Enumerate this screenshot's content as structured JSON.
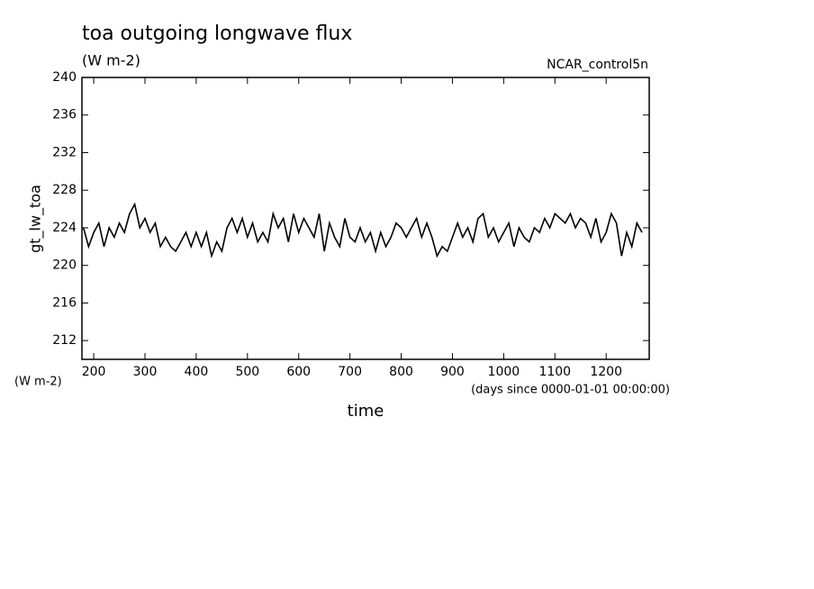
{
  "chart_data": {
    "type": "line",
    "title": "toa outgoing longwave flux",
    "subtitle": "(W m-2)",
    "annotation": "NCAR_control5n",
    "y_label": "gt_lw_toa",
    "y_units": "(W m-2)",
    "x_units": "(days since 0000-01-01 00:00:00)",
    "x_label": "time",
    "x": [
      180,
      190,
      200,
      210,
      220,
      230,
      240,
      250,
      260,
      270,
      280,
      290,
      300,
      310,
      320,
      330,
      340,
      350,
      360,
      370,
      380,
      390,
      400,
      410,
      420,
      430,
      440,
      450,
      460,
      470,
      480,
      490,
      500,
      510,
      520,
      530,
      540,
      550,
      560,
      570,
      580,
      590,
      600,
      610,
      620,
      630,
      640,
      650,
      660,
      670,
      680,
      690,
      700,
      710,
      720,
      730,
      740,
      750,
      760,
      770,
      780,
      790,
      800,
      810,
      820,
      830,
      840,
      850,
      860,
      870,
      880,
      890,
      900,
      910,
      920,
      930,
      940,
      950,
      960,
      970,
      980,
      990,
      1000,
      1010,
      1020,
      1030,
      1040,
      1050,
      1060,
      1070,
      1080,
      1090,
      1100,
      1110,
      1120,
      1130,
      1140,
      1150,
      1160,
      1170,
      1180,
      1190,
      1200,
      1210,
      1220,
      1230,
      1240,
      1250,
      1260,
      1270
    ],
    "series": [
      {
        "name": "gt_lw_toa",
        "color": "#000000",
        "values": [
          224,
          222,
          223.5,
          224.5,
          222,
          224,
          223,
          224.5,
          223.5,
          225.5,
          226.5,
          224,
          225,
          223.5,
          224.5,
          222,
          223,
          222,
          221.5,
          222.5,
          223.5,
          222,
          223.5,
          222,
          223.5,
          221,
          222.5,
          221.5,
          224,
          225,
          223.5,
          225,
          223,
          224.5,
          222.5,
          223.5,
          222.5,
          225.5,
          224,
          225,
          222.5,
          225.5,
          223.5,
          225,
          224,
          223,
          225.5,
          221.5,
          224.5,
          223,
          222,
          225,
          223,
          222.5,
          224,
          222.5,
          223.5,
          221.5,
          223.5,
          222,
          223,
          224.5,
          224,
          223,
          224,
          225,
          223,
          224.5,
          223,
          221,
          222,
          221.5,
          223,
          224.5,
          223,
          224,
          222.5,
          225,
          225.5,
          223,
          224,
          222.5,
          223.5,
          224.5,
          222,
          224,
          223,
          222.5,
          224,
          223.5,
          225,
          224,
          225.5,
          225,
          224.5,
          225.5,
          224,
          225,
          224.5,
          223,
          225,
          222.5,
          223.5,
          225.5,
          224.5,
          221,
          223.5,
          222,
          224.5,
          223.5
        ]
      }
    ],
    "xlim": [
      177,
      1284
    ],
    "ylim": [
      210,
      240
    ],
    "xticks": [
      200,
      300,
      400,
      500,
      600,
      700,
      800,
      900,
      1000,
      1100,
      1200
    ],
    "yticks": [
      212,
      216,
      220,
      224,
      228,
      232,
      236,
      240
    ]
  }
}
